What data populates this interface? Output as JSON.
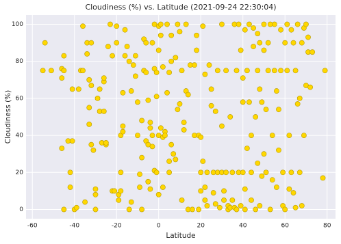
{
  "chart_data": {
    "type": "scatter",
    "title": "Cloudiness (%) vs. Latitude (2021-09-24 22:30:04)",
    "x_label": "Latitude",
    "y_label": "Cloudiness (%)",
    "color": "#ffd700",
    "edge_color": "#b59a00",
    "background": "#eaeaf2",
    "grid": true,
    "xlim": [
      -63,
      84
    ],
    "ylim": [
      -5,
      105
    ],
    "xticks": [
      -60,
      -40,
      -20,
      0,
      20,
      40,
      60,
      80
    ],
    "yticks": [
      0,
      20,
      40,
      60,
      80,
      100
    ],
    "x": [
      -55,
      -54,
      -51,
      -46,
      -45,
      -45,
      -46,
      -46,
      -45,
      -43,
      -42,
      -42,
      -41,
      -41,
      -40,
      -39,
      -38,
      -37,
      -36,
      -36,
      -35,
      -34,
      -34,
      -33,
      -33,
      -33,
      -32,
      -32,
      -32,
      -31,
      -30,
      -30,
      -30,
      -29,
      -28,
      -28,
      -27,
      -26,
      -26,
      -26,
      -25,
      -25,
      -24,
      -23,
      -22,
      -22,
      -21,
      -20,
      -20,
      -19,
      -19,
      -18,
      -18,
      -18,
      -17,
      -17,
      -17,
      -16,
      -16,
      -15,
      -14,
      -14,
      -13,
      -13,
      -12,
      -11,
      -11,
      -10,
      -10,
      -9,
      -9,
      -8,
      -8,
      -8,
      -7,
      -7,
      -6,
      -6,
      -6,
      -5,
      -5,
      -5,
      -4,
      -4,
      -4,
      -3,
      -3,
      -3,
      -2,
      -2,
      -2,
      -1,
      -1,
      -1,
      0,
      0,
      0,
      0,
      1,
      1,
      1,
      2,
      2,
      2,
      3,
      3,
      4,
      4,
      5,
      5,
      5,
      6,
      6,
      6,
      7,
      8,
      8,
      9,
      9,
      10,
      10,
      11,
      11,
      12,
      12,
      13,
      13,
      14,
      14,
      15,
      16,
      17,
      17,
      18,
      18,
      19,
      19,
      20,
      20,
      20,
      21,
      21,
      22,
      22,
      22,
      23,
      23,
      24,
      25,
      25,
      26,
      26,
      27,
      27,
      28,
      28,
      29,
      30,
      30,
      30,
      31,
      31,
      32,
      32,
      33,
      33,
      34,
      34,
      35,
      35,
      36,
      36,
      37,
      37,
      38,
      38,
      39,
      39,
      40,
      40,
      40,
      41,
      41,
      41,
      42,
      42,
      43,
      43,
      44,
      44,
      44,
      45,
      45,
      46,
      46,
      47,
      47,
      47,
      48,
      48,
      48,
      49,
      49,
      50,
      50,
      50,
      51,
      51,
      52,
      52,
      53,
      53,
      54,
      54,
      55,
      55,
      56,
      56,
      57,
      57,
      58,
      58,
      59,
      59,
      60,
      60,
      61,
      61,
      62,
      62,
      63,
      63,
      64,
      64,
      65,
      65,
      66,
      66,
      67,
      67,
      68,
      68,
      69,
      69,
      70,
      70,
      71,
      71,
      72,
      73,
      78,
      79
    ],
    "values": [
      75,
      90,
      75,
      76,
      83,
      75,
      71,
      33,
      0,
      37,
      20,
      12,
      37,
      65,
      0,
      1,
      65,
      75,
      99,
      75,
      4,
      84,
      90,
      46,
      55,
      70,
      67,
      90,
      35,
      32,
      8,
      11,
      0,
      60,
      65,
      53,
      36,
      69,
      71,
      53,
      35,
      36,
      88,
      100,
      10,
      83,
      10,
      99,
      90,
      5,
      8,
      10,
      20,
      40,
      63,
      45,
      42,
      83,
      97,
      88,
      80,
      0,
      64,
      4,
      78,
      72,
      83,
      58,
      40,
      19,
      12,
      28,
      0,
      48,
      75,
      92,
      74,
      90,
      37,
      15,
      59,
      35,
      44,
      11,
      47,
      40,
      90,
      34,
      76,
      100,
      21,
      74,
      61,
      20,
      86,
      99,
      40,
      8,
      94,
      100,
      44,
      39,
      12,
      77,
      42,
      40,
      100,
      63,
      74,
      26,
      20,
      35,
      94,
      80,
      30,
      27,
      82,
      100,
      54,
      57,
      96,
      5,
      75,
      47,
      43,
      64,
      100,
      0,
      62,
      78,
      0,
      40,
      78,
      86,
      94,
      40,
      0,
      39,
      10,
      20,
      26,
      99,
      5,
      12,
      73,
      20,
      2,
      78,
      65,
      56,
      20,
      9,
      53,
      3,
      75,
      20,
      1,
      20,
      45,
      100,
      5,
      10,
      75,
      20,
      0,
      2,
      50,
      1,
      20,
      5,
      100,
      1,
      75,
      0,
      20,
      100,
      2,
      86,
      71,
      20,
      58,
      11,
      0,
      97,
      75,
      33,
      58,
      100,
      20,
      5,
      40,
      88,
      98,
      50,
      0,
      95,
      75,
      25,
      2,
      65,
      90,
      58,
      18,
      86,
      100,
      30,
      20,
      54,
      75,
      90,
      0,
      100,
      40,
      16,
      75,
      100,
      64,
      12,
      32,
      54,
      75,
      97,
      20,
      2,
      90,
      0,
      100,
      75,
      40,
      11,
      20,
      97,
      90,
      9,
      75,
      1,
      57,
      100,
      60,
      20,
      90,
      2,
      98,
      40,
      100,
      67,
      93,
      85,
      66,
      85,
      17,
      75
    ]
  }
}
